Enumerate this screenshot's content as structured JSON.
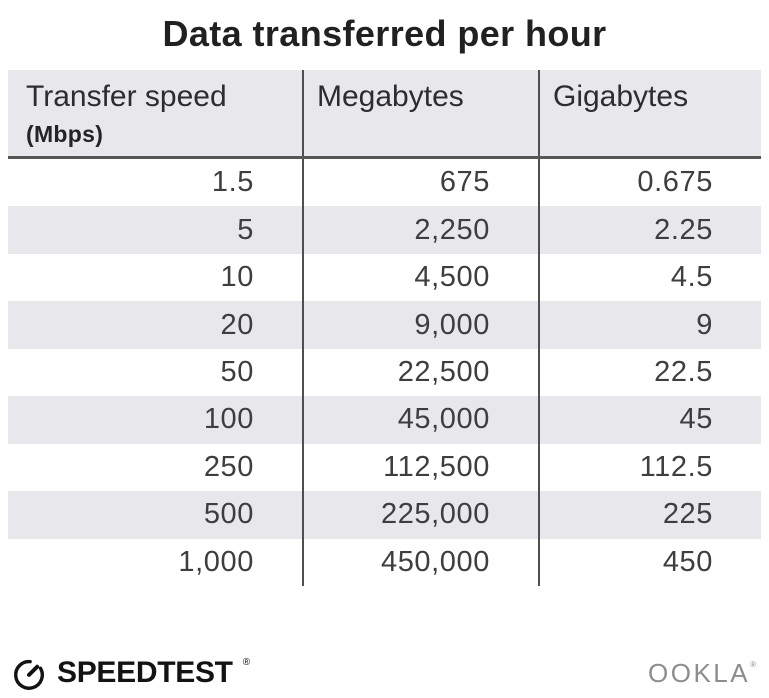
{
  "title": "Data transferred per hour",
  "table": {
    "columns": [
      {
        "label": "Transfer speed",
        "sublabel": "(Mbps)"
      },
      {
        "label": "Megabytes"
      },
      {
        "label": "Gigabytes"
      }
    ],
    "rows": [
      [
        "1.5",
        "675",
        "0.675"
      ],
      [
        "5",
        "2,250",
        "2.25"
      ],
      [
        "10",
        "4,500",
        "4.5"
      ],
      [
        "20",
        "9,000",
        "9"
      ],
      [
        "50",
        "22,500",
        "22.5"
      ],
      [
        "100",
        "45,000",
        "45"
      ],
      [
        "250",
        "112,500",
        "112.5"
      ],
      [
        "500",
        "225,000",
        "225"
      ],
      [
        "1,000",
        "450,000",
        "450"
      ]
    ]
  },
  "chart_data": {
    "type": "table",
    "title": "Data transferred per hour",
    "columns": [
      "Transfer speed (Mbps)",
      "Megabytes",
      "Gigabytes"
    ],
    "rows": [
      [
        1.5,
        675,
        0.675
      ],
      [
        5,
        2250,
        2.25
      ],
      [
        10,
        4500,
        4.5
      ],
      [
        20,
        9000,
        9
      ],
      [
        50,
        22500,
        22.5
      ],
      [
        100,
        45000,
        45
      ],
      [
        250,
        112500,
        112.5
      ],
      [
        500,
        225000,
        225
      ],
      [
        1000,
        450000,
        450
      ]
    ],
    "layout": {
      "striped_rows": true,
      "stripe_color": "#e8e8ec",
      "column_dividers": true
    }
  },
  "footer": {
    "speedtest_label": "SPEEDTEST",
    "speedtest_trademark": "®",
    "ookla_label": "OOKLA",
    "ookla_trademark": "®"
  },
  "colors": {
    "background": "#ffffff",
    "header_bg": "#e8e8ec",
    "stripe": "#e8e8ec",
    "divider": "#4f4f4f",
    "header_border": "#565656",
    "title_text": "#232021",
    "number_text": "#3e3e3e",
    "speedtest_black": "#131313",
    "ookla_gray": "#8d8d8d"
  }
}
